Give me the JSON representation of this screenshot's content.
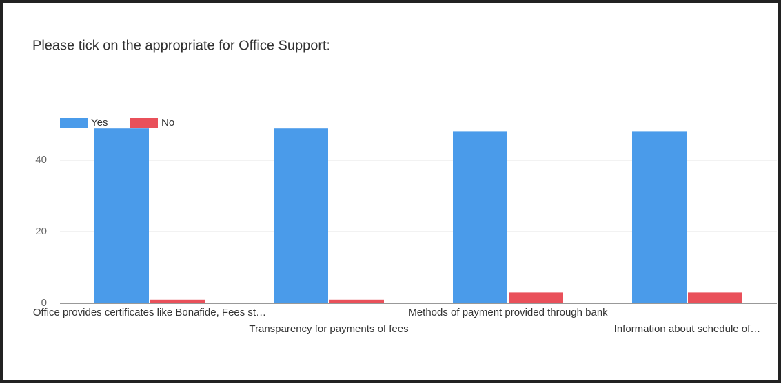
{
  "chart_data": {
    "type": "bar",
    "title": "Please tick on the appropriate for Office Support:",
    "categories": [
      "Office provides certificates like Bonafide, Fees st…",
      "Transparency for payments of fees",
      "Methods of payment provided through bank",
      "Information about schedule of…"
    ],
    "series": [
      {
        "name": "Yes",
        "color": "#4a9bea",
        "values": [
          49,
          49,
          48,
          48
        ]
      },
      {
        "name": "No",
        "color": "#e9505a",
        "values": [
          1,
          1,
          3,
          3
        ]
      }
    ],
    "ylim": [
      0,
      50
    ],
    "yticks": [
      0,
      20,
      40
    ],
    "grid": true,
    "legend": "top-left"
  }
}
